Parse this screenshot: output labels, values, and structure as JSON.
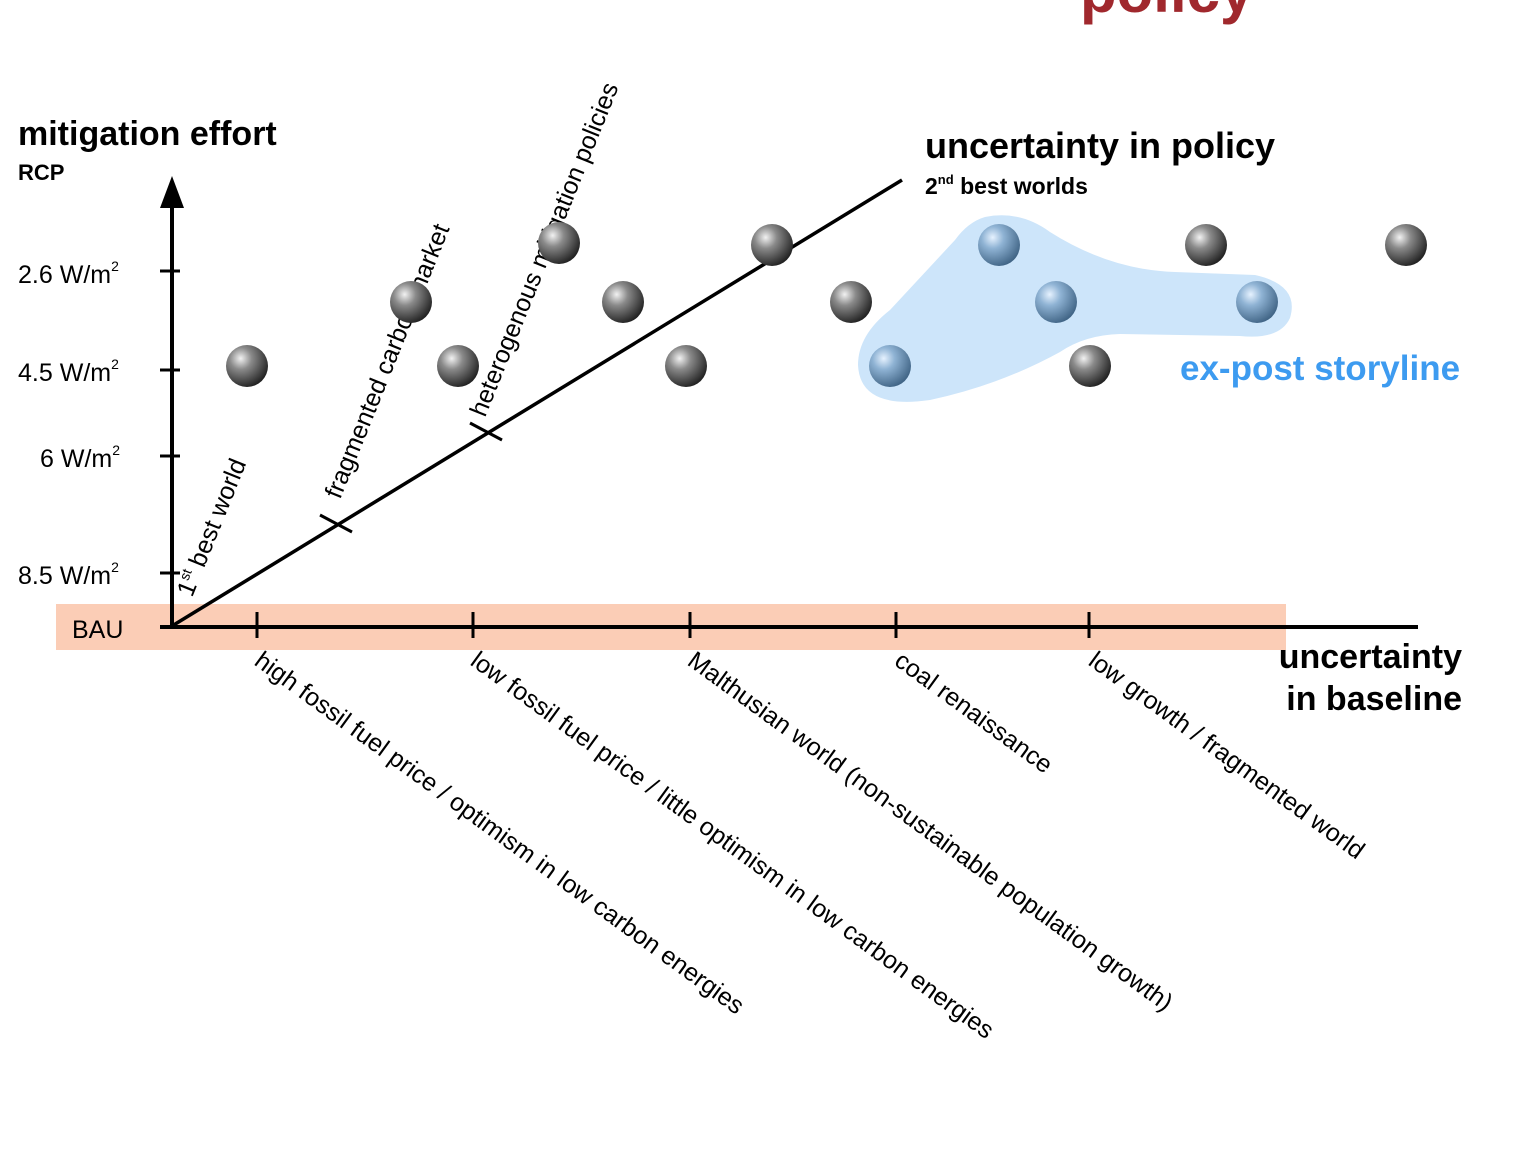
{
  "header": {
    "title_fragment": "policy"
  },
  "y_axis": {
    "title": "mitigation effort",
    "subtitle": "RCP",
    "ticks": [
      {
        "value": "2.6",
        "unit": "W/m",
        "exp": "2"
      },
      {
        "value": "4.5",
        "unit": "W/m",
        "exp": "2"
      },
      {
        "value": "6",
        "unit": "W/m",
        "exp": "2"
      },
      {
        "value": "8.5",
        "unit": "W/m",
        "exp": "2"
      }
    ],
    "origin_label": "BAU"
  },
  "x_axis": {
    "title_line1": "uncertainty",
    "title_line2": "in baseline",
    "baselines": [
      "high fossil fuel price / optimism in low carbon energies",
      "low fossil fuel price / little optimism in low carbon energies",
      "Malthusian world  (non-sustainable population growth)",
      "coal renaissance",
      "low growth / fragmented world"
    ]
  },
  "policy_axis": {
    "title": "uncertainty in policy",
    "subtitle_sup": "nd",
    "subtitle_num": "2",
    "subtitle_rest": " best worlds",
    "rays": [
      {
        "label_num": "1",
        "label_sup": "st",
        "label_rest": " best world"
      },
      {
        "label": "fragmented carbon market"
      },
      {
        "label": "heterogenous mitigation policies"
      }
    ]
  },
  "storyline": {
    "label": "ex-post storyline",
    "color": "#3d9bf0",
    "fill": "#cde5fa"
  },
  "bau_band_color": "#fbcdb6",
  "marker_colors": {
    "default": "#555555",
    "highlight": "#7ba6c9"
  }
}
